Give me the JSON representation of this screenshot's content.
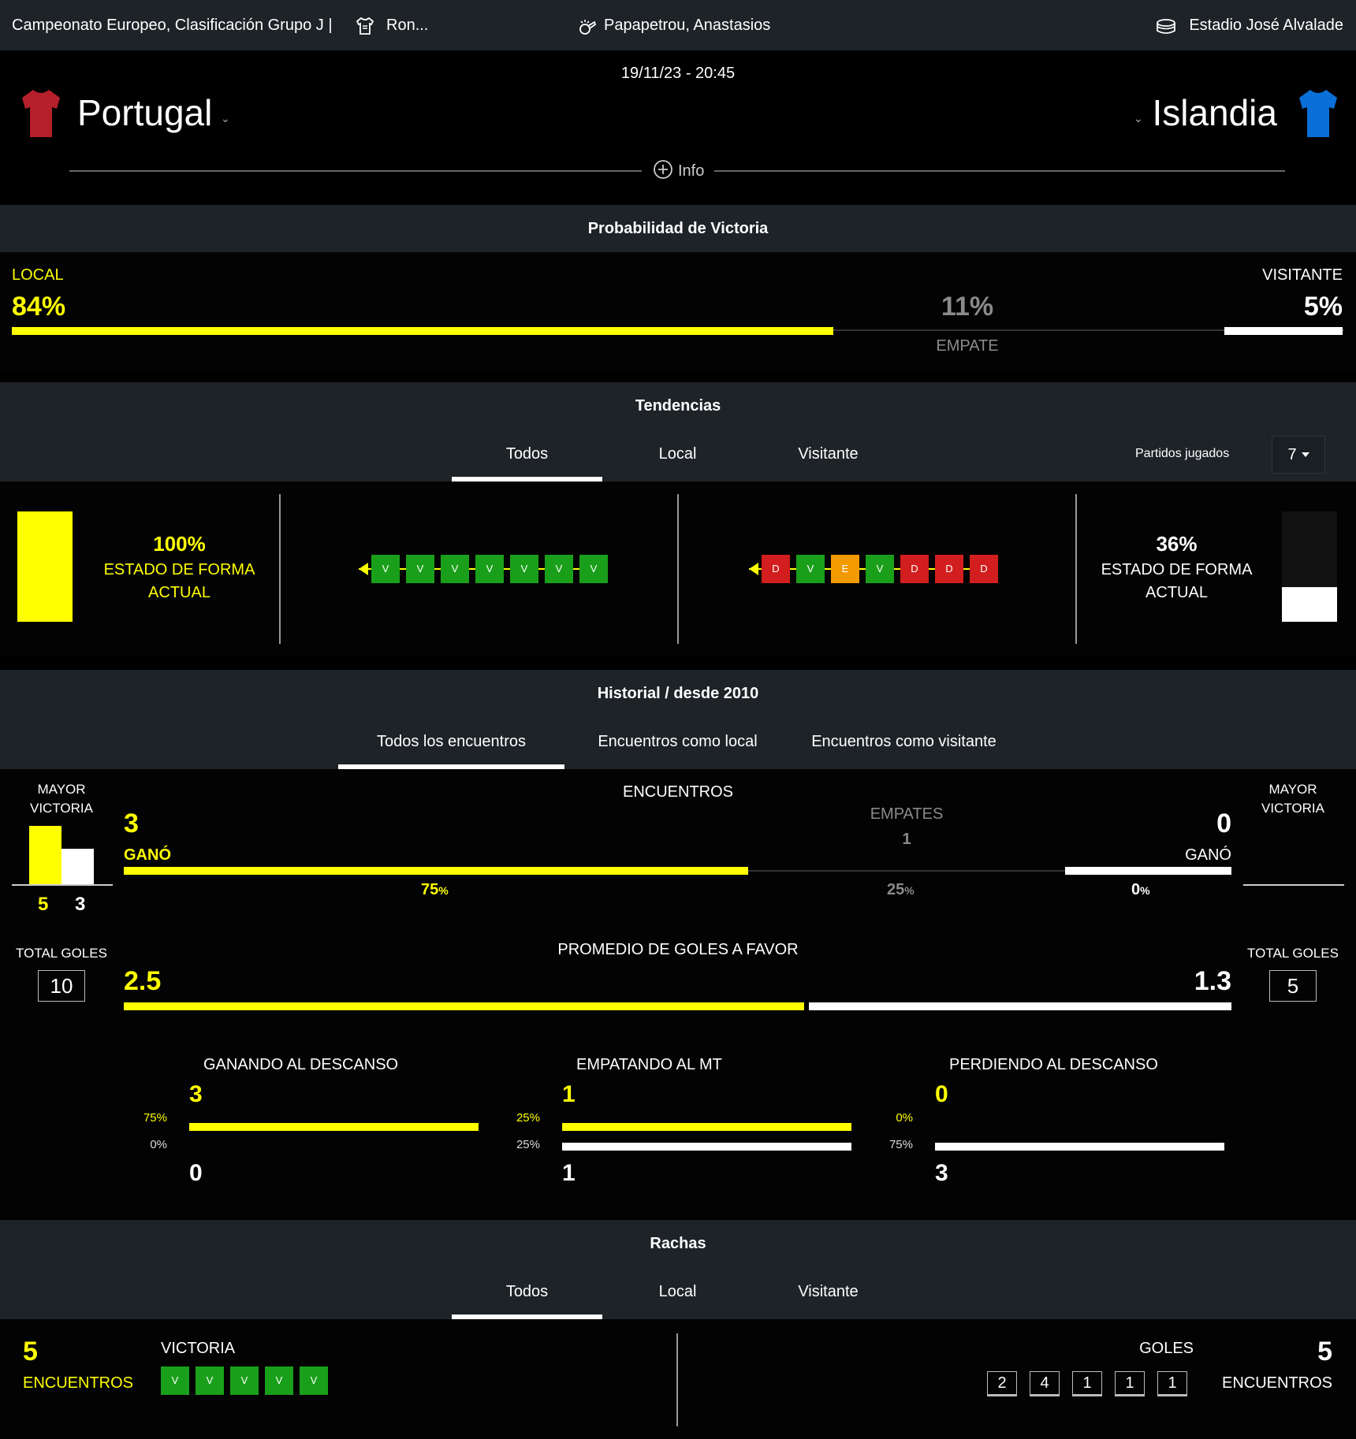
{
  "topbar": {
    "competition": "Campeonato Europeo, Clasificación Grupo J |",
    "round": "Ron...",
    "referee": "Papapetrou, Anastasios",
    "stadium": "Estadio José Alvalade"
  },
  "match": {
    "datetime": "19/11/23 - 20:45",
    "home_team": "Portugal",
    "away_team": "Islandia",
    "info_label": "Info",
    "home_shirt_color": "#b5202a",
    "away_shirt_color": "#0a6fd8"
  },
  "win_probability": {
    "title": "Probabilidad de Victoria",
    "home_label": "LOCAL",
    "home_value": "84%",
    "draw_value": "11%",
    "draw_label": "EMPATE",
    "away_label": "VISITANTE",
    "away_value": "5%",
    "home_fraction": 0.84,
    "away_fraction": 0.05
  },
  "trends": {
    "title": "Tendencias",
    "tabs": [
      "Todos",
      "Local",
      "Visitante"
    ],
    "matches_played_label": "Partidos jugados",
    "matches_played_value": "7",
    "home_form_pct": "100%",
    "home_form_label_1": "ESTADO DE FORMA",
    "home_form_label_2": "ACTUAL",
    "home_form_fraction": 1.0,
    "away_form_pct": "36%",
    "away_form_label_1": "ESTADO DE FORMA",
    "away_form_label_2": "ACTUAL",
    "away_form_fraction": 0.36,
    "home_results": [
      "V",
      "V",
      "V",
      "V",
      "V",
      "V",
      "V"
    ],
    "away_results": [
      "D",
      "V",
      "E",
      "V",
      "D",
      "D",
      "D"
    ]
  },
  "history": {
    "title": "Historial / desde 2010",
    "tabs": [
      "Todos los encuentros",
      "Encuentros como local",
      "Encuentros como visitante"
    ],
    "biggest_win_label_1": "MAYOR",
    "biggest_win_label_2": "VICTORIA",
    "biggest_win_home_score": "5",
    "biggest_win_away_score": "3",
    "encounters_label": "ENCUENTROS",
    "home_wins": "3",
    "home_won_label": "GANÓ",
    "draws_label": "EMPATES",
    "draws": "1",
    "away_wins": "0",
    "away_won_label": "GANÓ",
    "home_pct": "75",
    "draw_pct": "25",
    "away_pct": "0",
    "pct_sign": "%",
    "home_fraction": 0.75,
    "draw_fraction": 0.25,
    "away_fraction": 0.0,
    "total_goals_label": "TOTAL GOLES",
    "home_total_goals": "10",
    "away_total_goals": "5",
    "avg_goals_label": "PROMEDIO DE GOLES A FAVOR",
    "home_avg_goals": "2.5",
    "away_avg_goals": "1.3",
    "halftime": [
      {
        "label": "GANANDO AL DESCANSO",
        "home_value": "3",
        "home_pct": "75%",
        "away_value": "0",
        "away_pct": "0%",
        "home_fraction": 1.0,
        "away_fraction": 0.0
      },
      {
        "label": "EMPATANDO AL MT",
        "home_value": "1",
        "home_pct": "25%",
        "away_value": "1",
        "away_pct": "25%",
        "home_fraction": 1.0,
        "away_fraction": 1.0
      },
      {
        "label": "PERDIENDO AL DESCANSO",
        "home_value": "0",
        "home_pct": "0%",
        "away_value": "3",
        "away_pct": "75%",
        "home_fraction": 0.0,
        "away_fraction": 1.0
      }
    ]
  },
  "streaks": {
    "title": "Rachas",
    "tabs": [
      "Todos",
      "Local",
      "Visitante"
    ],
    "home_count": "5",
    "home_count_label": "ENCUENTROS",
    "home_streak_type": "VICTORIA",
    "home_streak_results": [
      "V",
      "V",
      "V",
      "V",
      "V"
    ],
    "away_streak_type": "GOLES",
    "away_count": "5",
    "away_count_label": "ENCUENTROS",
    "away_goals": [
      "2",
      "4",
      "1",
      "1",
      "1"
    ]
  },
  "colors": {
    "accent": "#ffff00",
    "win": "#1a9f1a",
    "loss": "#d21e1e",
    "draw": "#f39a00",
    "section_bg": "#1e2328"
  }
}
